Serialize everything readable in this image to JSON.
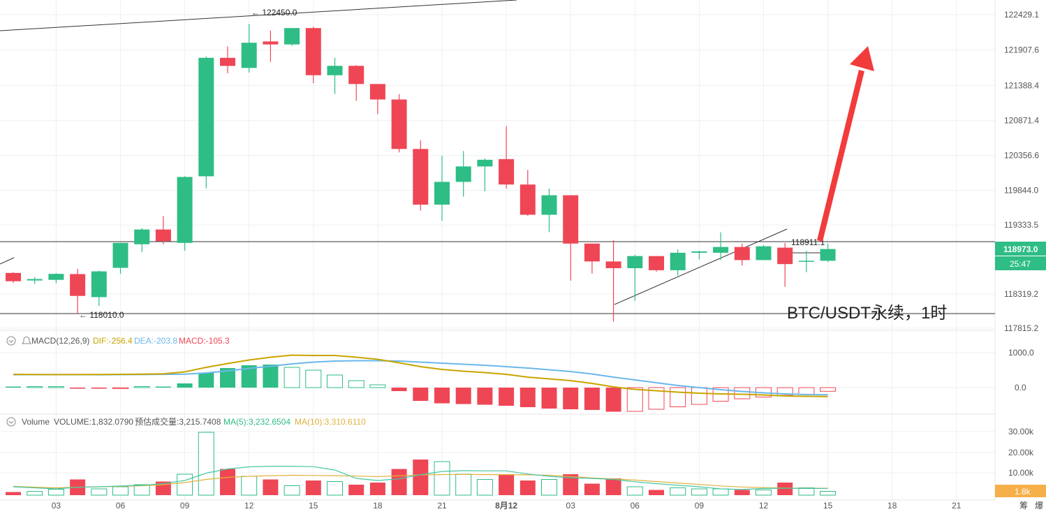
{
  "symbol_title": "BTC/USDT永续，1时",
  "colors": {
    "up": "#2ebd85",
    "down": "#ef4655",
    "grid": "#eeeeee",
    "dif": "#c9a400",
    "dea": "#6ab8ea",
    "ma5": "#46c6a4",
    "ma10": "#e0b13d",
    "arrow": "#f23b3b"
  },
  "price_axis": {
    "ticks": [
      "122429.1",
      "121907.6",
      "121388.4",
      "120871.4",
      "120356.6",
      "119844.0",
      "119333.5",
      "118319.2",
      "117815.2"
    ],
    "ylim": [
      117815.2,
      122429.1
    ]
  },
  "current_price": {
    "value": "118973.0",
    "countdown": "25:47"
  },
  "markers": {
    "high": "← 122450.0",
    "low": "← 118010.0",
    "range_high": "118911.1"
  },
  "x_axis_ticks": [
    "03",
    "06",
    "09",
    "12",
    "15",
    "18",
    "21",
    "8月12",
    "03",
    "06",
    "09",
    "12",
    "15",
    "18",
    "21"
  ],
  "macd": {
    "label": "MACD(12,26,9)",
    "dif_label": "DIF:-256.4",
    "dea_label": "DEA:-203.8",
    "macd_label": "MACD:-105.3",
    "axis_ticks": [
      "1000.0",
      "0.0"
    ]
  },
  "volume": {
    "label": "Volume",
    "vol_label": "VOLUME:1,832.0790",
    "est_label": "预估成交量:3,215.7408",
    "ma5_label": "MA(5):3,232.6504",
    "ma10_label": "MA(10):3,310.6110",
    "axis_ticks": [
      "30.00k",
      "20.00k",
      "10.00k"
    ],
    "current": "1.8k"
  },
  "corner": {
    "a": "筹",
    "b": "爆"
  },
  "chart_data": {
    "type": "candlestick",
    "interval": "1h",
    "candles": [
      {
        "o": 118629,
        "h": 118642,
        "l": 118482,
        "c": 118507
      },
      {
        "o": 118518,
        "h": 118566,
        "l": 118467,
        "c": 118539
      },
      {
        "o": 118527,
        "h": 118627,
        "l": 118478,
        "c": 118615
      },
      {
        "o": 118612,
        "h": 118688,
        "l": 118034,
        "c": 118291
      },
      {
        "o": 118273,
        "h": 118664,
        "l": 118142,
        "c": 118652
      },
      {
        "o": 118704,
        "h": 119071,
        "l": 118615,
        "c": 119071
      },
      {
        "o": 119051,
        "h": 119289,
        "l": 118934,
        "c": 119268
      },
      {
        "o": 119268,
        "h": 119465,
        "l": 119051,
        "c": 119096
      },
      {
        "o": 119071,
        "h": 120051,
        "l": 118956,
        "c": 120041
      },
      {
        "o": 120051,
        "h": 121814,
        "l": 119873,
        "c": 121794
      },
      {
        "o": 121794,
        "h": 121962,
        "l": 121567,
        "c": 121675
      },
      {
        "o": 121645,
        "h": 122291,
        "l": 121577,
        "c": 122016
      },
      {
        "o": 122035,
        "h": 122193,
        "l": 121735,
        "c": 121991
      },
      {
        "o": 121991,
        "h": 122232,
        "l": 121972,
        "c": 122232
      },
      {
        "o": 122232,
        "h": 122252,
        "l": 121420,
        "c": 121538
      },
      {
        "o": 121538,
        "h": 121794,
        "l": 121261,
        "c": 121676
      },
      {
        "o": 121676,
        "h": 121686,
        "l": 121162,
        "c": 121409
      },
      {
        "o": 121409,
        "h": 121379,
        "l": 120967,
        "c": 121181
      },
      {
        "o": 121181,
        "h": 121261,
        "l": 120403,
        "c": 120453
      },
      {
        "o": 120453,
        "h": 120581,
        "l": 119545,
        "c": 119634
      },
      {
        "o": 119634,
        "h": 120354,
        "l": 119396,
        "c": 119969
      },
      {
        "o": 119969,
        "h": 120423,
        "l": 119752,
        "c": 120196
      },
      {
        "o": 120196,
        "h": 120314,
        "l": 119831,
        "c": 120294
      },
      {
        "o": 120304,
        "h": 120788,
        "l": 119870,
        "c": 119930
      },
      {
        "o": 119930,
        "h": 120146,
        "l": 119466,
        "c": 119485
      },
      {
        "o": 119485,
        "h": 119870,
        "l": 119228,
        "c": 119772
      },
      {
        "o": 119772,
        "h": 119772,
        "l": 118515,
        "c": 119061
      },
      {
        "o": 119061,
        "h": 119061,
        "l": 118620,
        "c": 118798
      },
      {
        "o": 118798,
        "h": 119110,
        "l": 117913,
        "c": 118699
      },
      {
        "o": 118699,
        "h": 118897,
        "l": 118219,
        "c": 118877
      },
      {
        "o": 118877,
        "h": 118877,
        "l": 118648,
        "c": 118669
      },
      {
        "o": 118669,
        "h": 118975,
        "l": 118589,
        "c": 118926
      },
      {
        "o": 118926,
        "h": 118956,
        "l": 118828,
        "c": 118946
      },
      {
        "o": 118926,
        "h": 119228,
        "l": 118818,
        "c": 119011
      },
      {
        "o": 119011,
        "h": 119061,
        "l": 118738,
        "c": 118818
      },
      {
        "o": 118818,
        "h": 119041,
        "l": 118818,
        "c": 119021
      },
      {
        "o": 119001,
        "h": 119071,
        "l": 118424,
        "c": 118759
      },
      {
        "o": 118798,
        "h": 118956,
        "l": 118640,
        "c": 118808
      },
      {
        "o": 118808,
        "h": 119061,
        "l": 118788,
        "c": 118981
      }
    ],
    "dif": [
      380,
      375,
      372,
      375,
      376,
      380,
      385,
      395,
      450,
      580,
      690,
      790,
      870,
      930,
      920,
      920,
      870,
      810,
      710,
      600,
      520,
      470,
      430,
      380,
      300,
      250,
      200,
      120,
      20,
      -50,
      -90,
      -130,
      -160,
      -180,
      -190,
      -210,
      -240,
      -250,
      -256.4
    ],
    "dea": [
      370,
      372,
      372,
      370,
      368,
      372,
      376,
      380,
      385,
      420,
      480,
      550,
      610,
      680,
      730,
      760,
      770,
      770,
      760,
      730,
      700,
      670,
      640,
      600,
      560,
      510,
      460,
      390,
      300,
      220,
      140,
      60,
      0,
      -60,
      -110,
      -150,
      -180,
      -200,
      -203.8
    ],
    "macd_hist": [
      10,
      5,
      0,
      -20,
      -30,
      -20,
      10,
      20,
      120,
      430,
      560,
      640,
      660,
      580,
      500,
      360,
      200,
      80,
      -100,
      -380,
      -450,
      -470,
      -490,
      -520,
      -560,
      -600,
      -620,
      -640,
      -690,
      -680,
      -620,
      -550,
      -480,
      -390,
      -320,
      -270,
      -220,
      -195,
      -105.3
    ],
    "volume": [
      1500,
      1800,
      2800,
      7500,
      3000,
      4000,
      5000,
      6500,
      10000,
      30000,
      12500,
      9000,
      7500,
      4500,
      7000,
      6500,
      5000,
      6000,
      12500,
      17000,
      16000,
      10000,
      7500,
      10000,
      7000,
      7500,
      10000,
      5500,
      8000,
      4000,
      2500,
      3500,
      3000,
      3000,
      2500,
      2500,
      6000,
      3500,
      1832
    ],
    "vol_ma5": [
      4000,
      3500,
      3000,
      3800,
      4000,
      4400,
      4700,
      5500,
      7000,
      10500,
      12500,
      13500,
      13800,
      13800,
      13600,
      12000,
      8000,
      7000,
      7800,
      9800,
      11300,
      11700,
      11600,
      11600,
      10100,
      9000,
      8300,
      8000,
      7500,
      6400,
      5500,
      4700,
      4000,
      3000,
      2700,
      3200,
      3300,
      3200,
      3232
    ],
    "vol_ma10": [
      4200,
      3800,
      3500,
      3800,
      4000,
      4200,
      4500,
      5000,
      6000,
      7500,
      8500,
      9000,
      9300,
      9500,
      9400,
      9300,
      9100,
      8900,
      9200,
      9700,
      9800,
      9900,
      9800,
      9800,
      9700,
      9500,
      8900,
      8200,
      7700,
      7200,
      6500,
      5800,
      5100,
      4400,
      3900,
      3600,
      3400,
      3300,
      3310
    ]
  }
}
